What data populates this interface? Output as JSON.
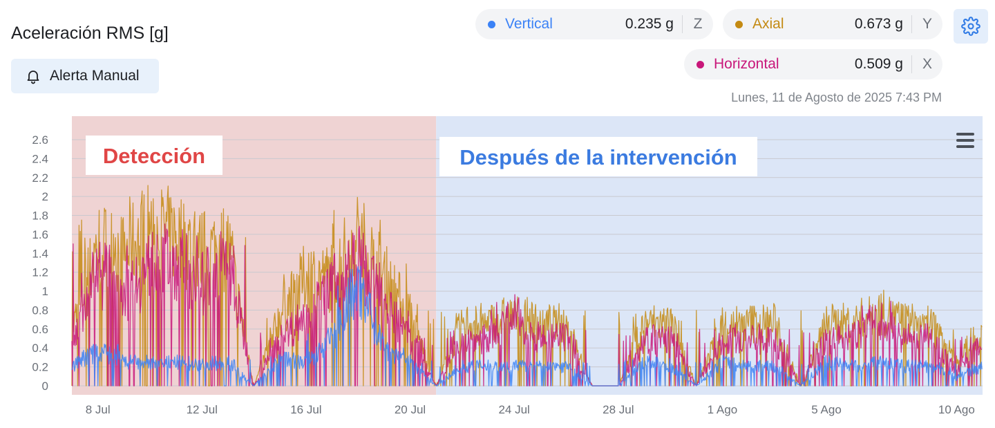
{
  "header": {
    "title": "Aceleración RMS [g]",
    "alert_button_label": "Alerta Manual",
    "timestamp": "Lunes, 11 de Agosto de 2025 7:43 PM"
  },
  "channels": [
    {
      "name": "Vertical",
      "value": "0.235 g",
      "axis": "Z",
      "color": "#3b82f6"
    },
    {
      "name": "Axial",
      "value": "0.673 g",
      "axis": "Y",
      "color": "#c48a12"
    },
    {
      "name": "Horizontal",
      "value": "0.509 g",
      "axis": "X",
      "color": "#c8177a"
    }
  ],
  "icons": {
    "alert": "bell-icon",
    "settings": "gear-icon",
    "menu": "hamburger-menu-icon"
  },
  "chart_data": {
    "type": "line",
    "title": "Aceleración RMS [g]",
    "ylabel": "",
    "xlabel": "",
    "ylim": [
      0,
      2.6
    ],
    "yticks": [
      0,
      0.2,
      0.4,
      0.6,
      0.8,
      1,
      1.2,
      1.4,
      1.6,
      1.8,
      2,
      2.2,
      2.4,
      2.6
    ],
    "xlim": [
      "2025-07-07",
      "2025-08-11"
    ],
    "xticks": [
      {
        "date": "2025-07-08",
        "label": "8 Jul"
      },
      {
        "date": "2025-07-12",
        "label": "12 Jul"
      },
      {
        "date": "2025-07-16",
        "label": "16 Jul"
      },
      {
        "date": "2025-07-20",
        "label": "20 Jul"
      },
      {
        "date": "2025-07-24",
        "label": "24 Jul"
      },
      {
        "date": "2025-07-28",
        "label": "28 Jul"
      },
      {
        "date": "2025-08-01",
        "label": "1 Ago"
      },
      {
        "date": "2025-08-05",
        "label": "5 Ago"
      },
      {
        "date": "2025-08-10",
        "label": "10 Ago"
      }
    ],
    "grid": true,
    "legend": "top-right",
    "regions": [
      {
        "label": "Detección",
        "from": "2025-07-07",
        "to": "2025-07-21",
        "fill": "#efd3d3",
        "label_color": "#e04646"
      },
      {
        "label": "Después de la intervención",
        "from": "2025-07-21",
        "to": "2025-08-11",
        "fill": "#dce6f7",
        "label_color": "#3b7be0"
      }
    ],
    "series": [
      {
        "name": "Axial",
        "color": "#c48a12",
        "x": [
          "2025-07-07",
          "2025-07-08",
          "2025-07-09",
          "2025-07-10",
          "2025-07-11",
          "2025-07-12",
          "2025-07-13",
          "2025-07-14",
          "2025-07-15",
          "2025-07-16",
          "2025-07-17",
          "2025-07-18",
          "2025-07-19",
          "2025-07-20",
          "2025-07-21",
          "2025-07-22",
          "2025-07-23",
          "2025-07-24",
          "2025-07-25",
          "2025-07-26",
          "2025-07-27",
          "2025-07-28",
          "2025-07-29",
          "2025-07-30",
          "2025-07-31",
          "2025-08-01",
          "2025-08-02",
          "2025-08-03",
          "2025-08-04",
          "2025-08-05",
          "2025-08-06",
          "2025-08-07",
          "2025-08-08",
          "2025-08-09",
          "2025-08-10",
          "2025-08-11"
        ],
        "values": [
          0.7,
          1.8,
          1.7,
          2.0,
          1.9,
          1.7,
          1.8,
          0.0,
          0.9,
          1.4,
          1.4,
          1.9,
          1.4,
          0.9,
          0.0,
          0.8,
          0.8,
          0.9,
          0.8,
          0.8,
          0.0,
          0.0,
          0.8,
          0.8,
          0.0,
          0.8,
          0.8,
          0.8,
          0.0,
          0.8,
          0.8,
          0.95,
          0.8,
          0.8,
          0.3,
          0.75
        ]
      },
      {
        "name": "Horizontal",
        "color": "#c8177a",
        "x": [
          "2025-07-07",
          "2025-07-08",
          "2025-07-09",
          "2025-07-10",
          "2025-07-11",
          "2025-07-12",
          "2025-07-13",
          "2025-07-14",
          "2025-07-15",
          "2025-07-16",
          "2025-07-17",
          "2025-07-18",
          "2025-07-19",
          "2025-07-20",
          "2025-07-21",
          "2025-07-22",
          "2025-07-23",
          "2025-07-24",
          "2025-07-25",
          "2025-07-26",
          "2025-07-27",
          "2025-07-28",
          "2025-07-29",
          "2025-07-30",
          "2025-07-31",
          "2025-08-01",
          "2025-08-02",
          "2025-08-03",
          "2025-08-04",
          "2025-08-05",
          "2025-08-06",
          "2025-08-07",
          "2025-08-08",
          "2025-08-09",
          "2025-08-10",
          "2025-08-11"
        ],
        "values": [
          0.6,
          1.5,
          1.2,
          1.5,
          1.6,
          1.3,
          1.6,
          0.0,
          0.6,
          0.9,
          1.2,
          1.6,
          1.0,
          0.6,
          0.0,
          0.6,
          0.6,
          0.9,
          0.6,
          0.6,
          0.0,
          0.0,
          0.6,
          0.6,
          0.0,
          0.6,
          0.6,
          0.6,
          0.0,
          0.6,
          0.6,
          0.9,
          0.6,
          0.6,
          0.2,
          0.55
        ]
      },
      {
        "name": "Vertical",
        "color": "#3b82f6",
        "x": [
          "2025-07-07",
          "2025-07-08",
          "2025-07-09",
          "2025-07-10",
          "2025-07-11",
          "2025-07-12",
          "2025-07-13",
          "2025-07-14",
          "2025-07-15",
          "2025-07-16",
          "2025-07-17",
          "2025-07-18",
          "2025-07-19",
          "2025-07-20",
          "2025-07-21",
          "2025-07-22",
          "2025-07-23",
          "2025-07-24",
          "2025-07-25",
          "2025-07-26",
          "2025-07-27",
          "2025-07-28",
          "2025-07-29",
          "2025-07-30",
          "2025-07-31",
          "2025-08-01",
          "2025-08-02",
          "2025-08-03",
          "2025-08-04",
          "2025-08-05",
          "2025-08-06",
          "2025-08-07",
          "2025-08-08",
          "2025-08-09",
          "2025-08-10",
          "2025-08-11"
        ],
        "values": [
          0.25,
          0.45,
          0.3,
          0.3,
          0.3,
          0.28,
          0.3,
          0.0,
          0.35,
          0.3,
          0.6,
          1.3,
          0.5,
          0.3,
          0.0,
          0.25,
          0.25,
          0.25,
          0.25,
          0.25,
          0.0,
          0.0,
          0.3,
          0.25,
          0.0,
          0.3,
          0.25,
          0.25,
          0.0,
          0.3,
          0.25,
          0.3,
          0.25,
          0.25,
          0.1,
          0.25
        ]
      }
    ]
  }
}
